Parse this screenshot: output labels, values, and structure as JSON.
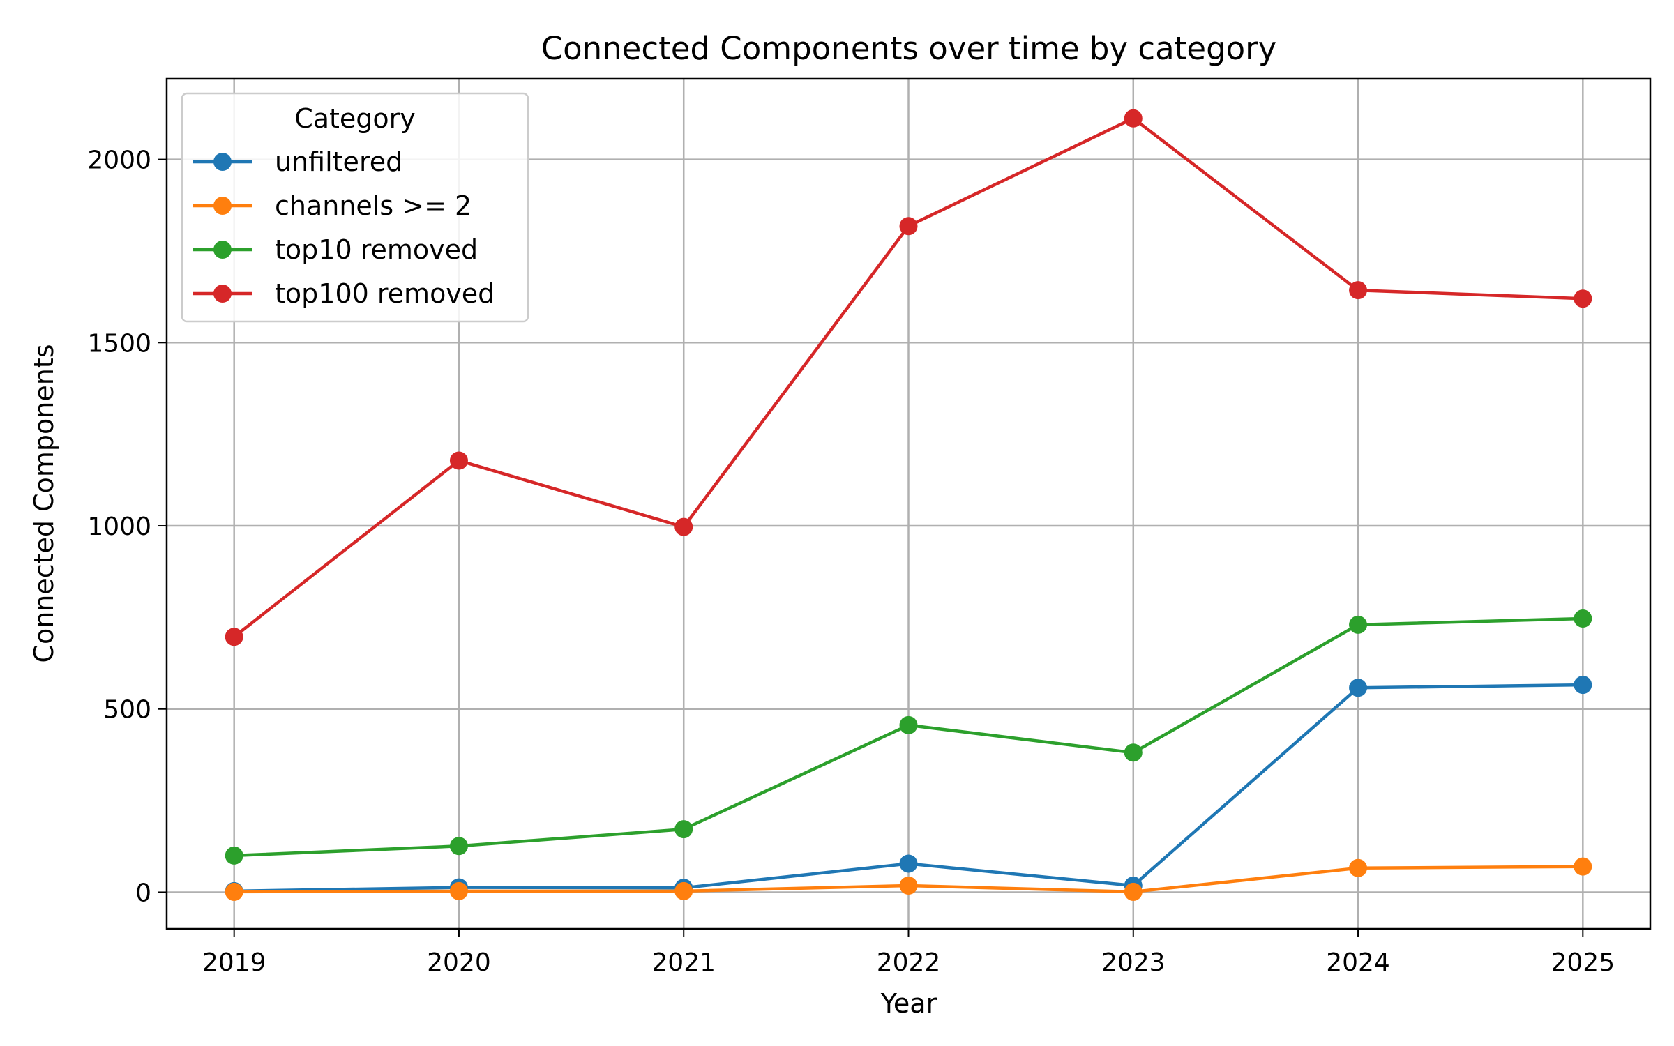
{
  "chart_data": {
    "type": "line",
    "title": "Connected Components over time by category",
    "xlabel": "Year",
    "ylabel": "Connected Components",
    "x": [
      2019,
      2020,
      2021,
      2022,
      2023,
      2024,
      2025
    ],
    "x_tick_labels": [
      "2019",
      "2020",
      "2021",
      "2022",
      "2023",
      "2024",
      "2025"
    ],
    "y_ticks": [
      0,
      500,
      1000,
      1500,
      2000
    ],
    "y_tick_labels": [
      "0",
      "500",
      "1000",
      "1500",
      "2000"
    ],
    "xlim": [
      2018.7,
      2025.3
    ],
    "ylim": [
      -100,
      2220
    ],
    "grid": true,
    "legend": {
      "title": "Category",
      "position": "top-left"
    },
    "series": [
      {
        "name": "unfiltered",
        "color": "#1f77b4",
        "values": [
          3,
          13,
          12,
          78,
          18,
          558,
          566
        ]
      },
      {
        "name": "channels >= 2",
        "color": "#ff7f0e",
        "values": [
          1,
          3,
          3,
          18,
          1,
          66,
          70
        ]
      },
      {
        "name": "top10 removed",
        "color": "#2ca02c",
        "values": [
          100,
          126,
          172,
          456,
          381,
          730,
          747
        ]
      },
      {
        "name": "top100 removed",
        "color": "#d62728",
        "values": [
          697,
          1178,
          997,
          1818,
          2112,
          1643,
          1620
        ]
      }
    ]
  }
}
